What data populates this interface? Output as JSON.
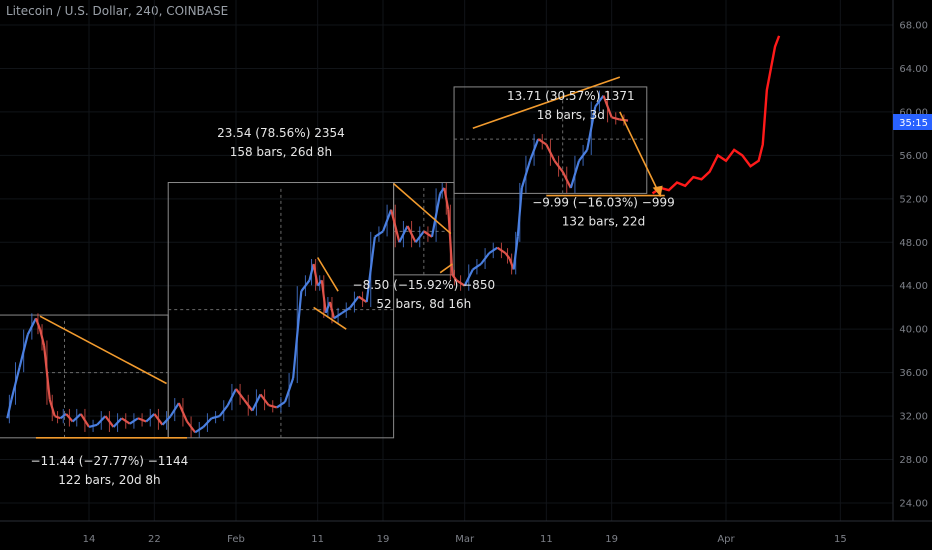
{
  "header": {
    "title": "Litecoin / U.S. Dollar, 240, COINBASE"
  },
  "price_badge": "35:15",
  "colors": {
    "up": "#4a7fe0",
    "down": "#e0534a",
    "projection": "#ff1a1a",
    "trendline": "#f29b2e",
    "box": "#8a8a8a",
    "badge": "#2962ff"
  },
  "chart_data": {
    "type": "line",
    "ylim": [
      22,
      69
    ],
    "y_ticks": [
      "24.00",
      "28.00",
      "32.00",
      "36.00",
      "40.00",
      "44.00",
      "48.00",
      "52.00",
      "56.00",
      "60.00",
      "64.00",
      "68.00"
    ],
    "y_tick_values": [
      24,
      28,
      32,
      36,
      40,
      44,
      48,
      52,
      56,
      60,
      64,
      68
    ],
    "x_ticks": [
      "14",
      "22",
      "Feb",
      "11",
      "19",
      "Mar",
      "11",
      "19",
      "Apr",
      "15"
    ],
    "x_tick_days": [
      13,
      21,
      31,
      41,
      49,
      59,
      69,
      77,
      91,
      105
    ],
    "xlim": [
      3,
      112
    ],
    "price_series": {
      "x": [
        3,
        3.5,
        4.5,
        5.5,
        6.5,
        7,
        7.5,
        8.2,
        8.8,
        9.5,
        10.2,
        11,
        12,
        13,
        14,
        15,
        16,
        17,
        18,
        19,
        20,
        21,
        22,
        23,
        24,
        25,
        26,
        27,
        28,
        29,
        30,
        31,
        32,
        33,
        34,
        35,
        36,
        37,
        38,
        39,
        40,
        40.5,
        41,
        41.5,
        42,
        42.5,
        43,
        44,
        45,
        46,
        47,
        48,
        49,
        50,
        51,
        52,
        53,
        54,
        55,
        56,
        56.5,
        57,
        57.5,
        58,
        59,
        60,
        61,
        62,
        63,
        64,
        64.5,
        65,
        65.5,
        66,
        67,
        68,
        69,
        70,
        71,
        72,
        73,
        74,
        75,
        76,
        77,
        78,
        79
      ],
      "y": [
        31.8,
        33.5,
        36.5,
        39.5,
        41,
        40,
        38.5,
        33.5,
        32,
        31.8,
        32.2,
        31.5,
        32.2,
        31,
        31.2,
        32,
        31,
        31.8,
        31.3,
        31.8,
        31.5,
        32.2,
        31.2,
        32,
        33.2,
        31.5,
        30.5,
        31,
        31.8,
        32,
        33,
        34.5,
        33.5,
        32.5,
        34,
        33,
        32.8,
        33.3,
        35.5,
        43.5,
        44.5,
        46,
        44,
        44.5,
        41.5,
        42.5,
        41,
        41.5,
        42,
        43,
        42.5,
        48.5,
        49,
        51,
        48,
        49.5,
        48,
        49,
        48.5,
        52.5,
        53,
        51,
        45,
        44.5,
        44,
        45.5,
        46,
        47,
        47.5,
        47,
        46.5,
        45.5,
        48.5,
        53,
        55.5,
        57.5,
        57,
        55.5,
        54.5,
        53,
        55.5,
        56.5,
        60.5,
        61.5,
        59.5,
        59.3,
        59.2
      ]
    },
    "projection_series": {
      "x": [
        82,
        83,
        84,
        85,
        86,
        87,
        88,
        89,
        90,
        91,
        92,
        93,
        94,
        95,
        95.5,
        96,
        96.5,
        97,
        97.5
      ],
      "y": [
        52.5,
        53,
        52.8,
        53.5,
        53.2,
        54,
        53.8,
        54.5,
        56,
        55.5,
        56.5,
        56,
        55,
        55.5,
        57,
        62,
        64,
        66,
        67
      ]
    },
    "measurements": [
      {
        "line1": "−11.44 (−27.77%) −1144",
        "line2": "122 bars, 20d 8h"
      },
      {
        "line1": "23.54 (78.56%) 2354",
        "line2": "158 bars, 26d 8h"
      },
      {
        "line1": "−8.50 (−15.92%) −850",
        "line2": "52 bars, 8d 16h"
      },
      {
        "line1": "13.71 (30.57%) 1371",
        "line2": "18 bars, 3d"
      },
      {
        "line1": "−9.99 (−16.03%) −999",
        "line2": "132 bars, 22d"
      }
    ]
  }
}
